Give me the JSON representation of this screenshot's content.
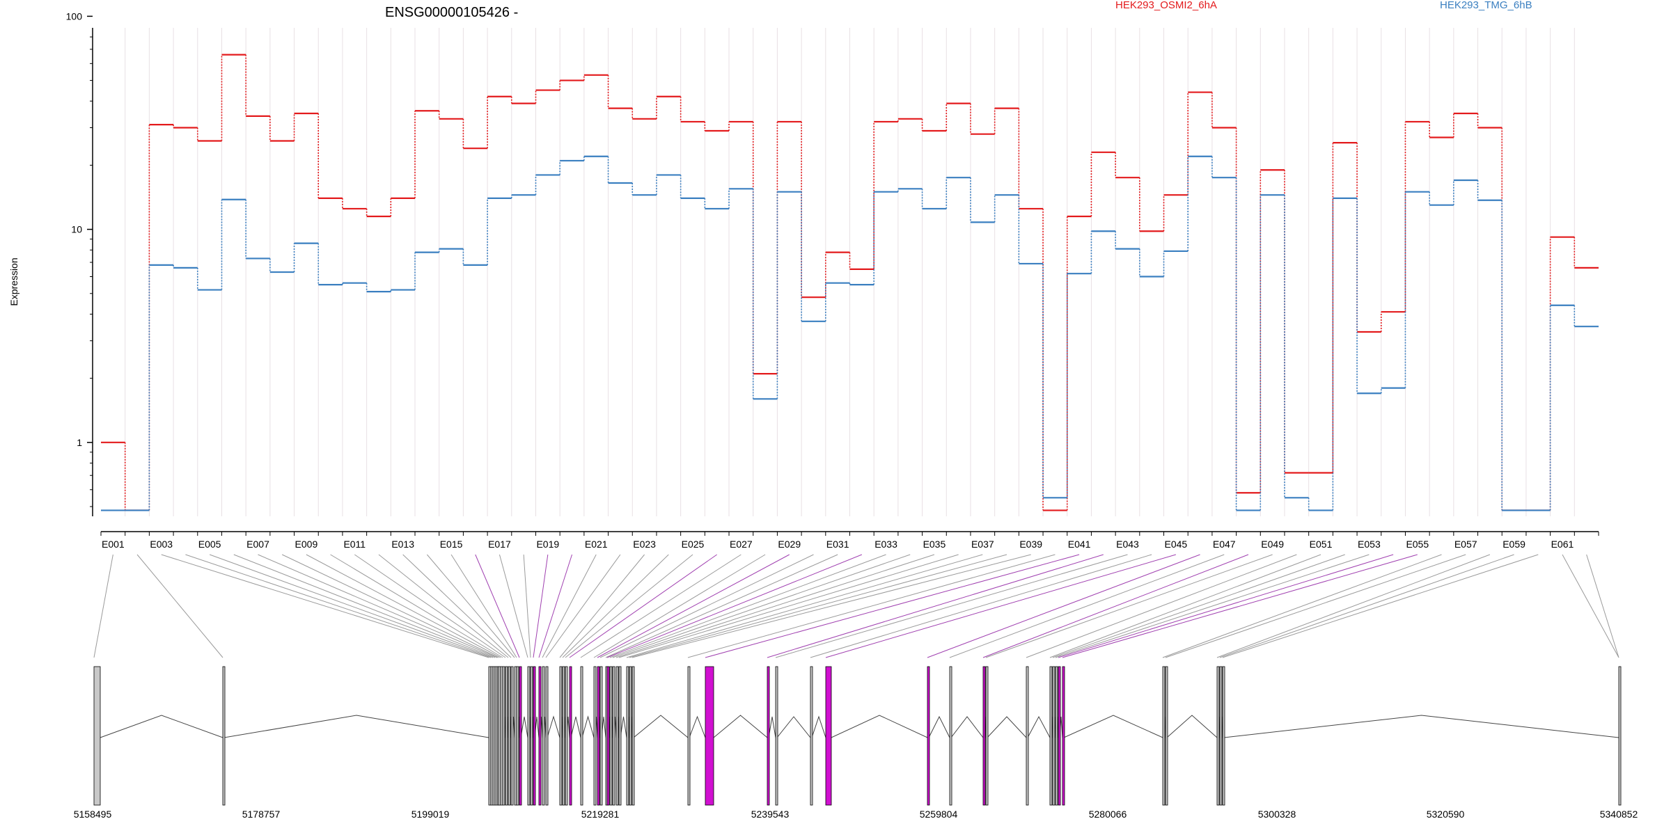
{
  "chart_data": [
    {
      "type": "line",
      "title": "ENSG00000105426 -",
      "ylabel": "Expression",
      "yscale": "log",
      "ylim": [
        0.45,
        85
      ],
      "yticks": [
        "1",
        "10",
        "100"
      ],
      "x_tick_labels": [
        "E001",
        "E003",
        "E005",
        "E007",
        "E009",
        "E011",
        "E013",
        "E015",
        "E017",
        "E019",
        "E021",
        "E023",
        "E025",
        "E027",
        "E029",
        "E031",
        "E033",
        "E035",
        "E037",
        "E039",
        "E041",
        "E043",
        "E045",
        "E047",
        "E049",
        "E051",
        "E053",
        "E055",
        "E057",
        "E059",
        "E061"
      ],
      "categories": [
        "E001",
        "E002",
        "E003",
        "E004",
        "E005",
        "E006",
        "E007",
        "E008",
        "E009",
        "E010",
        "E011",
        "E012",
        "E013",
        "E014",
        "E015",
        "E016",
        "E017",
        "E018",
        "E019",
        "E020",
        "E021",
        "E022",
        "E023",
        "E024",
        "E025",
        "E026",
        "E027",
        "E028",
        "E029",
        "E030",
        "E031",
        "E032",
        "E033",
        "E034",
        "E035",
        "E036",
        "E037",
        "E038",
        "E039",
        "E040",
        "E041",
        "E042",
        "E043",
        "E044",
        "E045",
        "E046",
        "E047",
        "E048",
        "E049",
        "E050",
        "E051",
        "E052",
        "E053",
        "E054",
        "E055",
        "E056",
        "E057",
        "E058",
        "E059",
        "E060",
        "E061",
        "E062"
      ],
      "grid": true,
      "legend_position": "top",
      "series": [
        {
          "name": "HEK293_OSMI2_6hA",
          "color": "#e31a1c",
          "values": [
            1.0,
            0.48,
            31,
            30,
            26,
            66,
            34,
            26,
            35,
            14,
            12.5,
            11.5,
            14,
            36,
            33,
            24,
            42,
            39,
            45,
            50,
            53,
            37,
            33,
            42,
            32,
            29,
            32,
            2.1,
            32,
            4.8,
            7.8,
            6.5,
            32,
            33,
            29,
            39,
            28,
            37,
            12.5,
            0.48,
            11.5,
            23,
            17.5,
            9.8,
            14.5,
            44,
            30,
            0.58,
            19,
            0.72,
            0.72,
            25.5,
            3.3,
            4.1,
            32,
            27,
            35,
            30,
            0.48,
            0.48,
            9.2,
            6.6
          ]
        },
        {
          "name": "HEK293_TMG_6hB",
          "color": "#3a7fc0",
          "values": [
            0.48,
            0.48,
            6.8,
            6.6,
            5.2,
            13.8,
            7.3,
            6.3,
            8.6,
            5.5,
            5.6,
            5.1,
            5.2,
            7.8,
            8.1,
            6.8,
            14,
            14.5,
            18,
            21,
            22,
            16.5,
            14.5,
            18,
            14,
            12.5,
            15.5,
            1.6,
            15,
            3.7,
            5.6,
            5.5,
            15,
            15.5,
            12.5,
            17.5,
            10.8,
            14.5,
            6.9,
            0.55,
            6.2,
            9.8,
            8.1,
            6.0,
            7.9,
            22,
            17.5,
            0.48,
            14.5,
            0.55,
            0.48,
            14,
            1.7,
            1.8,
            15,
            13,
            17,
            13.7,
            0.48,
            0.48,
            4.4,
            3.5
          ]
        }
      ]
    },
    {
      "type": "gene_model",
      "x_tick_labels": [
        "5158495",
        "5178757",
        "5199019",
        "5219281",
        "5239543",
        "5259804",
        "5280066",
        "5300328",
        "5320590",
        "5340852"
      ],
      "colors": {
        "exon_normal": "#c8c8c8",
        "exon_highlight": "#d010d0",
        "connector_normal": "#9a9a9a",
        "connector_highlight": "#a040b0"
      }
    }
  ]
}
